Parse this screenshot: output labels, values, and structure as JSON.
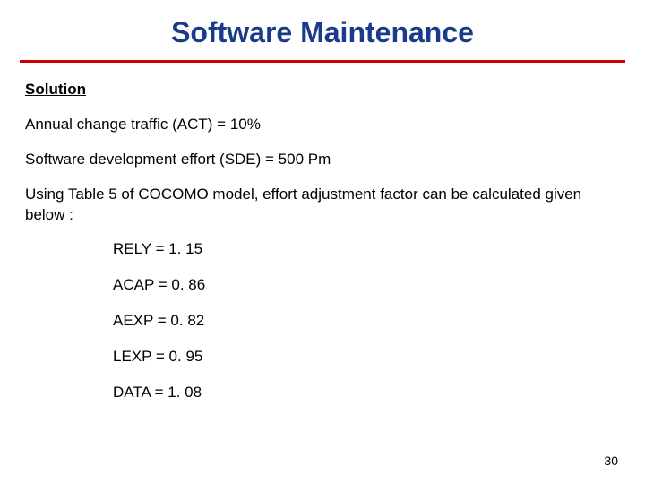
{
  "title": "Software Maintenance",
  "title_color": "#1a3b8c",
  "underline_color": "#cc0000",
  "heading": "Solution",
  "body": {
    "line1": "Annual change traffic (ACT) = 10%",
    "line2": "Software development effort (SDE) = 500 Pm",
    "line3": "Using Table 5 of COCOMO model, effort adjustment factor can be calculated given below :"
  },
  "factors": {
    "f0": "RELY = 1. 15",
    "f1": "ACAP = 0. 86",
    "f2": "AEXP = 0. 82",
    "f3": "LEXP = 0. 95",
    "f4": "DATA = 1. 08"
  },
  "page_number": "30",
  "background_color": "#ffffff",
  "text_color": "#000000",
  "body_fontsize": 17,
  "title_fontsize": 32
}
